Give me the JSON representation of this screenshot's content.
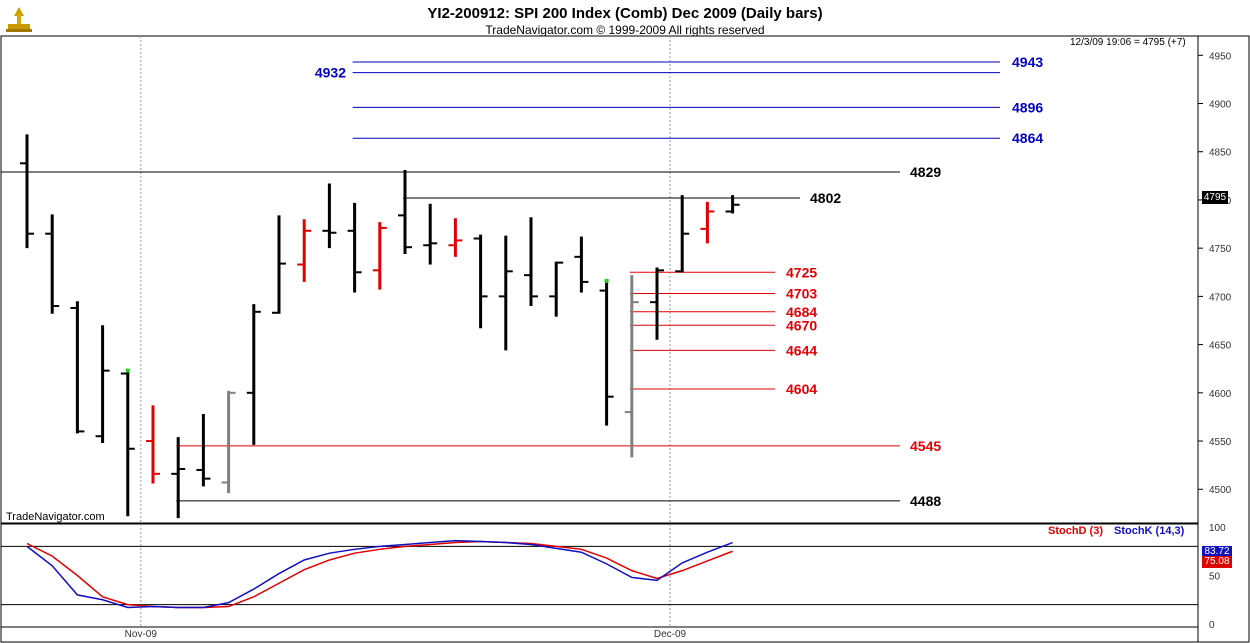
{
  "header": {
    "title": "YI2-200912:  SPI 200 Index (Comb) Dec 2009  (Daily bars)",
    "copyright": "TradeNavigator.com © 1999-2009 All rights reserved"
  },
  "watermark": "TradeNavigator.com",
  "quote": "12/3/09 19:06 = 4795 (+7)",
  "last_price_badge": "4795",
  "indicator": {
    "stochd_label": "StochD (3)",
    "stochk_label": "StochK (14,3)",
    "stochk_value": "83.72",
    "stochd_value": "75.08",
    "stochd_color": "#e00000",
    "stochk_color": "#1010c0",
    "y_ticks": [
      0,
      50,
      100
    ],
    "y_range": [
      0,
      100
    ],
    "ref_levels": [
      80,
      20
    ]
  },
  "colors": {
    "up_bar": "#000000",
    "red_bar": "#e00000",
    "gray_bar": "#808080",
    "blue_level": "#0000c0",
    "red_level": "#e00000",
    "black_level": "#000000"
  },
  "chart_data": {
    "type": "ohlc",
    "title": "YI2-200912:  SPI 200 Index (Comb) Dec 2009  (Daily bars)",
    "ylim": [
      4465,
      4970
    ],
    "y_ticks": [
      4500,
      4550,
      4600,
      4650,
      4700,
      4750,
      4800,
      4850,
      4900,
      4950
    ],
    "x_labels": [
      {
        "label": "Nov-09",
        "index": 4
      },
      {
        "label": "Dec-09",
        "index": 25
      }
    ],
    "grid": "vertical month separators (dotted)",
    "bars": [
      {
        "o": 4838,
        "h": 4868,
        "l": 4750,
        "c": 4765,
        "color": "black"
      },
      {
        "o": 4765,
        "h": 4785,
        "l": 4682,
        "c": 4690,
        "color": "black"
      },
      {
        "o": 4688,
        "h": 4695,
        "l": 4558,
        "c": 4560,
        "color": "black"
      },
      {
        "o": 4555,
        "h": 4670,
        "l": 4548,
        "c": 4623,
        "color": "black"
      },
      {
        "o": 4620,
        "h": 4622,
        "l": 4472,
        "c": 4542,
        "color": "black",
        "marker": "green"
      },
      {
        "o": 4550,
        "h": 4587,
        "l": 4506,
        "c": 4516,
        "color": "red"
      },
      {
        "o": 4516,
        "h": 4554,
        "l": 4470,
        "c": 4521,
        "color": "black"
      },
      {
        "o": 4520,
        "h": 4578,
        "l": 4503,
        "c": 4511,
        "color": "black"
      },
      {
        "o": 4507,
        "h": 4602,
        "l": 4496,
        "c": 4600,
        "color": "gray"
      },
      {
        "o": 4600,
        "h": 4692,
        "l": 4546,
        "c": 4684,
        "color": "black"
      },
      {
        "o": 4683,
        "h": 4784,
        "l": 4682,
        "c": 4734,
        "color": "black"
      },
      {
        "o": 4733,
        "h": 4780,
        "l": 4715,
        "c": 4768,
        "color": "red"
      },
      {
        "o": 4768,
        "h": 4817,
        "l": 4750,
        "c": 4766,
        "color": "black"
      },
      {
        "o": 4768,
        "h": 4797,
        "l": 4704,
        "c": 4725,
        "color": "black"
      },
      {
        "o": 4727,
        "h": 4777,
        "l": 4707,
        "c": 4771,
        "color": "red"
      },
      {
        "o": 4784,
        "h": 4831,
        "l": 4744,
        "c": 4751,
        "color": "black"
      },
      {
        "o": 4753,
        "h": 4796,
        "l": 4733,
        "c": 4755,
        "color": "black"
      },
      {
        "o": 4753,
        "h": 4781,
        "l": 4741,
        "c": 4758,
        "color": "red"
      },
      {
        "o": 4760,
        "h": 4764,
        "l": 4667,
        "c": 4700,
        "color": "black"
      },
      {
        "o": 4700,
        "h": 4763,
        "l": 4644,
        "c": 4726,
        "color": "black"
      },
      {
        "o": 4722,
        "h": 4782,
        "l": 4690,
        "c": 4700,
        "color": "black"
      },
      {
        "o": 4700,
        "h": 4736,
        "l": 4679,
        "c": 4735,
        "color": "black"
      },
      {
        "o": 4741,
        "h": 4762,
        "l": 4704,
        "c": 4715,
        "color": "black"
      },
      {
        "o": 4706,
        "h": 4715,
        "l": 4566,
        "c": 4596,
        "color": "black",
        "marker": "green"
      },
      {
        "o": 4580,
        "h": 4722,
        "l": 4533,
        "c": 4694,
        "color": "gray"
      },
      {
        "o": 4694,
        "h": 4730,
        "l": 4655,
        "c": 4727,
        "color": "black"
      },
      {
        "o": 4726,
        "h": 4805,
        "l": 4725,
        "c": 4765,
        "color": "black"
      },
      {
        "o": 4770,
        "h": 4798,
        "l": 4755,
        "c": 4788,
        "color": "red"
      },
      {
        "o": 4788,
        "h": 4805,
        "l": 4786,
        "c": 4795,
        "color": "black"
      }
    ],
    "levels": [
      {
        "value": 4943,
        "label": "4943",
        "color": "blue",
        "start_index": 13,
        "label_side": "right"
      },
      {
        "value": 4932,
        "label": "4932",
        "color": "blue",
        "start_index": 13,
        "label_side": "left"
      },
      {
        "value": 4896,
        "label": "4896",
        "color": "blue",
        "start_index": 13,
        "label_side": "right"
      },
      {
        "value": 4864,
        "label": "4864",
        "color": "blue",
        "start_index": 13,
        "label_side": "right"
      },
      {
        "value": 4829,
        "label": "4829",
        "color": "black",
        "start_index": -1,
        "label_side": "far"
      },
      {
        "value": 4802,
        "label": "4802",
        "color": "black",
        "start_index": 15,
        "label_side": "mid"
      },
      {
        "value": 4725,
        "label": "4725",
        "color": "red",
        "start_index": 24,
        "label_side": "mid"
      },
      {
        "value": 4703,
        "label": "4703",
        "color": "red",
        "start_index": 24,
        "label_side": "mid"
      },
      {
        "value": 4684,
        "label": "4684",
        "color": "red",
        "start_index": 24,
        "label_side": "mid"
      },
      {
        "value": 4670,
        "label": "4670",
        "color": "red",
        "start_index": 24,
        "label_side": "mid"
      },
      {
        "value": 4644,
        "label": "4644",
        "color": "red",
        "start_index": 24,
        "label_side": "mid"
      },
      {
        "value": 4604,
        "label": "4604",
        "color": "red",
        "start_index": 24,
        "label_side": "mid"
      },
      {
        "value": 4545,
        "label": "4545",
        "color": "red",
        "start_index": 6,
        "label_side": "far"
      },
      {
        "value": 4488,
        "label": "4488",
        "color": "black",
        "start_index": 6,
        "label_side": "far"
      }
    ],
    "stoch_k": [
      80,
      60,
      30,
      25,
      17,
      18,
      17,
      17,
      22,
      36,
      52,
      66,
      73,
      77,
      80,
      82,
      84,
      86,
      85,
      84,
      82,
      78,
      74,
      62,
      48,
      45,
      63,
      74,
      84
    ],
    "stoch_d": [
      83,
      70,
      50,
      28,
      20,
      18,
      17,
      17,
      18,
      28,
      42,
      56,
      66,
      73,
      77,
      80,
      82,
      84,
      85,
      84,
      83,
      80,
      77,
      68,
      55,
      47,
      55,
      65,
      75
    ]
  }
}
